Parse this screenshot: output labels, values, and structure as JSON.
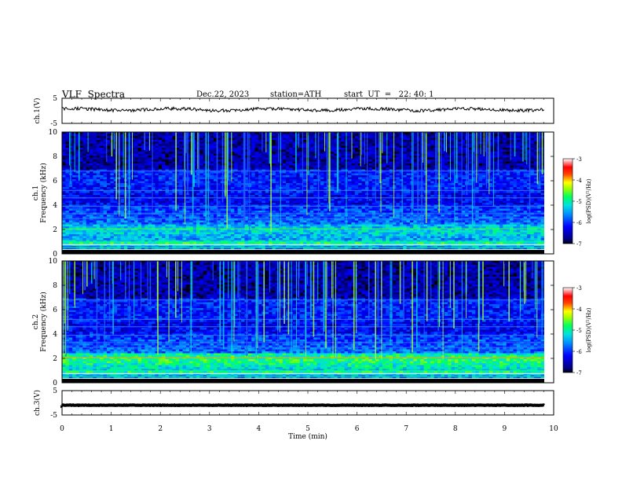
{
  "header": {
    "title": "VLF  Spectra",
    "date": "Dec.22, 2023",
    "station": "station=ATH",
    "start": "start  UT  =   22: 40: 1"
  },
  "chart_data": {
    "type": "heatmap",
    "xlabel": "Time  (min)",
    "xlim": [
      0,
      10
    ],
    "xticks": [
      "0",
      "1",
      "2",
      "3",
      "4",
      "5",
      "6",
      "7",
      "8",
      "9",
      "10"
    ],
    "panels": [
      {
        "name": "ch1-waveform",
        "type": "line",
        "ylabel": "ch.1(V)",
        "ylim": [
          -5,
          5
        ],
        "yticks": [
          "5",
          "-5"
        ],
        "baseline": 0.5
      },
      {
        "name": "ch1-spectrogram",
        "type": "heatmap",
        "ylabel_top": "ch.1",
        "ylabel": "Frequency  (kHz)",
        "ylim": [
          0,
          10
        ],
        "yticks": [
          "0",
          "2",
          "4",
          "6",
          "8",
          "10"
        ]
      },
      {
        "name": "ch2-spectrogram",
        "type": "heatmap",
        "ylabel_top": "ch.2",
        "ylabel": "Frequency  (kHz)",
        "ylim": [
          0,
          10
        ],
        "yticks": [
          "0",
          "2",
          "4",
          "6",
          "8",
          "10"
        ]
      },
      {
        "name": "ch3-waveform",
        "type": "line",
        "ylabel": "ch.3(V)",
        "ylim": [
          -5,
          5
        ],
        "yticks": [
          "5",
          "-5"
        ],
        "baseline": -1
      }
    ],
    "colorbar": {
      "label": "log(PSD)(V²/Hz)",
      "range": [
        -7,
        -3
      ],
      "ticks": [
        "-3",
        "-4",
        "-5",
        "-6",
        "-7"
      ]
    }
  }
}
